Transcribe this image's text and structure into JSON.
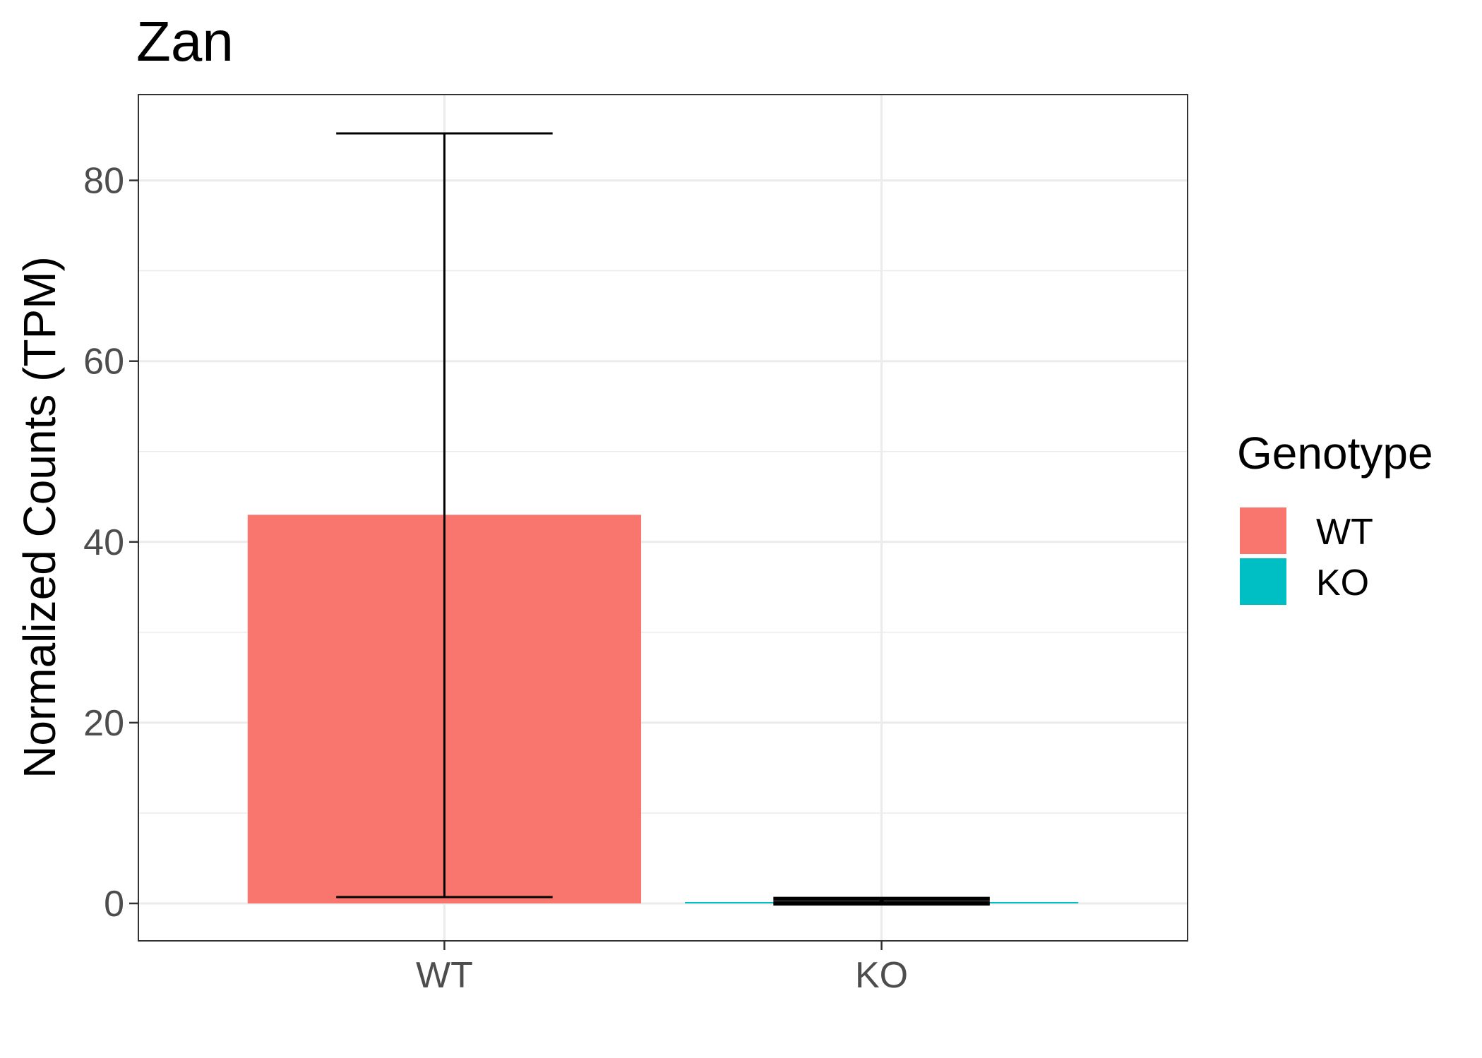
{
  "chart_data": {
    "type": "bar",
    "title": "Zan",
    "xlabel": "",
    "ylabel": "Normalized Counts (TPM)",
    "categories": [
      "WT",
      "KO"
    ],
    "values": [
      43.0,
      0.1
    ],
    "error_bars": [
      {
        "category": "WT",
        "low": 0.7,
        "high": 85.2
      },
      {
        "category": "KO",
        "low": 0.0,
        "high": 0.5
      }
    ],
    "colors": [
      "#F8766D",
      "#00BFC4"
    ],
    "ylim": [
      -4.2,
      89.5
    ],
    "yticks": [
      0,
      20,
      40,
      60,
      80
    ],
    "ytick_labels": [
      "0",
      "20",
      "40",
      "60",
      "80"
    ],
    "grid": true,
    "legend": {
      "title": "Genotype",
      "position": "right",
      "entries": [
        {
          "label": "WT",
          "color": "#F8766D"
        },
        {
          "label": "KO",
          "color": "#00BFC4"
        }
      ]
    }
  }
}
